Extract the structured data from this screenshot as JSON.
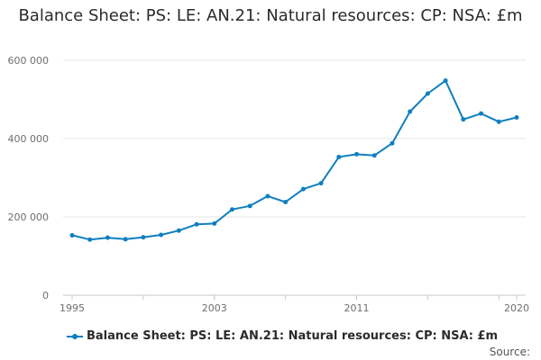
{
  "chart_data": {
    "type": "line",
    "title": "Balance Sheet: PS: LE: AN.21: Natural resources: CP: NSA: £m",
    "xlabel": "",
    "ylabel": "",
    "x": [
      1995,
      1996,
      1997,
      1998,
      1999,
      2000,
      2001,
      2002,
      2003,
      2004,
      2005,
      2006,
      2007,
      2008,
      2009,
      2010,
      2011,
      2012,
      2013,
      2014,
      2015,
      2016,
      2017,
      2018,
      2019,
      2020
    ],
    "series": [
      {
        "name": "Balance Sheet: PS: LE: AN.21: Natural resources: CP: NSA: £m",
        "values": [
          153000,
          142000,
          147000,
          143000,
          148000,
          154000,
          165000,
          181000,
          183000,
          219000,
          228000,
          253000,
          238000,
          271000,
          286000,
          353000,
          360000,
          357000,
          388000,
          469000,
          515000,
          548000,
          449000,
          464000,
          443000,
          454000
        ]
      }
    ],
    "ylim": [
      0,
      600000
    ],
    "yticks": [
      0,
      200000,
      400000,
      600000
    ],
    "ytick_labels": [
      "0",
      "200 000",
      "400 000",
      "600 000"
    ],
    "xticks": [
      1995,
      2003,
      2011,
      2020
    ],
    "xtick_labels": [
      "1995",
      "2003",
      "2011",
      "2020"
    ],
    "grid": true,
    "legend": "bottom-left",
    "color": "#0f7fbf"
  },
  "footer": {
    "source_label": "Source:"
  }
}
